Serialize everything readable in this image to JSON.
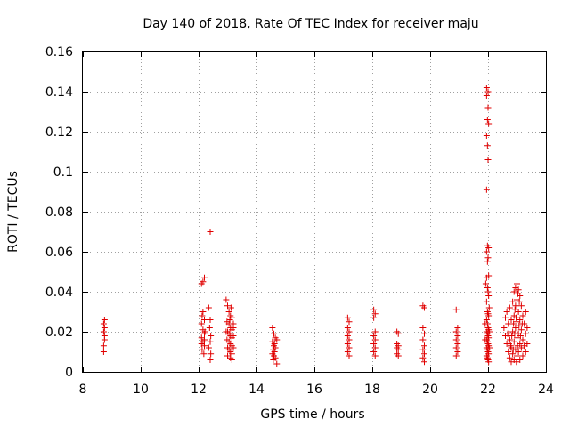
{
  "chart_data": {
    "type": "scatter",
    "title": "Day 140 of 2018, Rate Of TEC Index for receiver maju",
    "xlabel": "GPS time / hours",
    "ylabel": "ROTI / TECUs",
    "xlim": [
      8,
      24
    ],
    "ylim": [
      0,
      0.16
    ],
    "grid": true,
    "marker": "plus",
    "color": "#e00000",
    "x_ticks": [
      8,
      10,
      12,
      14,
      16,
      18,
      20,
      22,
      24
    ],
    "x_tick_labels": [
      "8",
      "10",
      "12",
      "14",
      "16",
      "18",
      "20",
      "22",
      "24"
    ],
    "y_ticks": [
      0,
      0.02,
      0.04,
      0.06,
      0.08,
      0.1,
      0.12,
      0.14,
      0.16
    ],
    "y_tick_labels": [
      "0",
      "0.02",
      "0.04",
      "0.06",
      "0.08",
      "0.1",
      "0.12",
      "0.14",
      "0.16"
    ],
    "series": [
      {
        "name": "ROTI",
        "points": [
          [
            8.72,
            0.01
          ],
          [
            8.72,
            0.013
          ],
          [
            8.75,
            0.016
          ],
          [
            8.75,
            0.018
          ],
          [
            8.72,
            0.02
          ],
          [
            8.75,
            0.022
          ],
          [
            8.72,
            0.024
          ],
          [
            8.75,
            0.026
          ],
          [
            12.1,
            0.044
          ],
          [
            12.15,
            0.045
          ],
          [
            12.2,
            0.047
          ],
          [
            12.15,
            0.03
          ],
          [
            12.12,
            0.028
          ],
          [
            12.2,
            0.026
          ],
          [
            12.1,
            0.024
          ],
          [
            12.15,
            0.021
          ],
          [
            12.2,
            0.019
          ],
          [
            12.1,
            0.017
          ],
          [
            12.15,
            0.015
          ],
          [
            12.2,
            0.013
          ],
          [
            12.12,
            0.011
          ],
          [
            12.18,
            0.009
          ],
          [
            12.22,
            0.02
          ],
          [
            12.1,
            0.014
          ],
          [
            12.2,
            0.016
          ],
          [
            12.4,
            0.07
          ],
          [
            12.35,
            0.032
          ],
          [
            12.4,
            0.026
          ],
          [
            12.38,
            0.022
          ],
          [
            12.42,
            0.018
          ],
          [
            12.4,
            0.015
          ],
          [
            12.35,
            0.012
          ],
          [
            12.42,
            0.009
          ],
          [
            12.4,
            0.006
          ],
          [
            12.95,
            0.036
          ],
          [
            13.0,
            0.033
          ],
          [
            13.05,
            0.03
          ],
          [
            13.1,
            0.028
          ],
          [
            13.15,
            0.027
          ],
          [
            12.98,
            0.025
          ],
          [
            13.05,
            0.024
          ],
          [
            13.1,
            0.022
          ],
          [
            13.15,
            0.021
          ],
          [
            13.0,
            0.02
          ],
          [
            13.05,
            0.019
          ],
          [
            13.1,
            0.018
          ],
          [
            13.15,
            0.017
          ],
          [
            12.98,
            0.016
          ],
          [
            13.05,
            0.015
          ],
          [
            13.1,
            0.014
          ],
          [
            13.15,
            0.013
          ],
          [
            13.0,
            0.012
          ],
          [
            13.05,
            0.011
          ],
          [
            13.1,
            0.01
          ],
          [
            13.15,
            0.009
          ],
          [
            13.0,
            0.008
          ],
          [
            13.1,
            0.007
          ],
          [
            13.15,
            0.006
          ],
          [
            13.2,
            0.024
          ],
          [
            13.2,
            0.018
          ],
          [
            13.2,
            0.012
          ],
          [
            13.2,
            0.022
          ],
          [
            12.95,
            0.02
          ],
          [
            13.12,
            0.032
          ],
          [
            13.08,
            0.026
          ],
          [
            14.55,
            0.022
          ],
          [
            14.6,
            0.019
          ],
          [
            14.65,
            0.017
          ],
          [
            14.55,
            0.015
          ],
          [
            14.6,
            0.013
          ],
          [
            14.65,
            0.012
          ],
          [
            14.58,
            0.011
          ],
          [
            14.62,
            0.01
          ],
          [
            14.55,
            0.009
          ],
          [
            14.6,
            0.008
          ],
          [
            14.65,
            0.007
          ],
          [
            14.58,
            0.006
          ],
          [
            14.7,
            0.004
          ],
          [
            14.7,
            0.016
          ],
          [
            14.62,
            0.014
          ],
          [
            17.15,
            0.027
          ],
          [
            17.2,
            0.025
          ],
          [
            17.15,
            0.022
          ],
          [
            17.2,
            0.02
          ],
          [
            17.15,
            0.018
          ],
          [
            17.2,
            0.016
          ],
          [
            17.15,
            0.014
          ],
          [
            17.2,
            0.012
          ],
          [
            17.15,
            0.01
          ],
          [
            17.2,
            0.008
          ],
          [
            18.05,
            0.031
          ],
          [
            18.1,
            0.029
          ],
          [
            18.05,
            0.027
          ],
          [
            18.1,
            0.02
          ],
          [
            18.05,
            0.018
          ],
          [
            18.1,
            0.016
          ],
          [
            18.05,
            0.014
          ],
          [
            18.1,
            0.012
          ],
          [
            18.05,
            0.01
          ],
          [
            18.1,
            0.008
          ],
          [
            18.85,
            0.02
          ],
          [
            18.9,
            0.019
          ],
          [
            18.85,
            0.014
          ],
          [
            18.9,
            0.013
          ],
          [
            18.85,
            0.012
          ],
          [
            18.9,
            0.011
          ],
          [
            18.85,
            0.009
          ],
          [
            18.9,
            0.008
          ],
          [
            19.75,
            0.033
          ],
          [
            19.8,
            0.032
          ],
          [
            19.75,
            0.022
          ],
          [
            19.8,
            0.019
          ],
          [
            19.75,
            0.016
          ],
          [
            19.8,
            0.013
          ],
          [
            19.75,
            0.011
          ],
          [
            19.8,
            0.009
          ],
          [
            19.75,
            0.007
          ],
          [
            19.8,
            0.005
          ],
          [
            20.9,
            0.031
          ],
          [
            20.95,
            0.022
          ],
          [
            20.9,
            0.02
          ],
          [
            20.95,
            0.018
          ],
          [
            20.9,
            0.016
          ],
          [
            20.95,
            0.014
          ],
          [
            20.9,
            0.012
          ],
          [
            20.95,
            0.01
          ],
          [
            20.9,
            0.008
          ],
          [
            21.95,
            0.142
          ],
          [
            22.0,
            0.14
          ],
          [
            21.95,
            0.138
          ],
          [
            22.0,
            0.132
          ],
          [
            21.98,
            0.126
          ],
          [
            22.02,
            0.124
          ],
          [
            21.95,
            0.118
          ],
          [
            21.98,
            0.113
          ],
          [
            22.0,
            0.106
          ],
          [
            21.95,
            0.091
          ],
          [
            21.98,
            0.063
          ],
          [
            22.02,
            0.062
          ],
          [
            21.95,
            0.06
          ],
          [
            22.0,
            0.057
          ],
          [
            21.98,
            0.055
          ],
          [
            22.02,
            0.048
          ],
          [
            21.95,
            0.047
          ],
          [
            21.98,
            0.042
          ],
          [
            22.0,
            0.04
          ],
          [
            22.02,
            0.038
          ],
          [
            21.95,
            0.035
          ],
          [
            21.98,
            0.03
          ],
          [
            22.0,
            0.029
          ],
          [
            22.02,
            0.028
          ],
          [
            21.95,
            0.026
          ],
          [
            21.98,
            0.024
          ],
          [
            22.0,
            0.022
          ],
          [
            22.02,
            0.021
          ],
          [
            21.95,
            0.02
          ],
          [
            21.98,
            0.019
          ],
          [
            22.0,
            0.018
          ],
          [
            22.02,
            0.017
          ],
          [
            21.95,
            0.016
          ],
          [
            21.98,
            0.015
          ],
          [
            22.0,
            0.014
          ],
          [
            22.02,
            0.013
          ],
          [
            21.95,
            0.012
          ],
          [
            21.98,
            0.011
          ],
          [
            22.0,
            0.01
          ],
          [
            22.02,
            0.009
          ],
          [
            21.95,
            0.008
          ],
          [
            21.98,
            0.007
          ],
          [
            22.0,
            0.006
          ],
          [
            22.02,
            0.005
          ],
          [
            21.9,
            0.024
          ],
          [
            22.05,
            0.02
          ],
          [
            21.9,
            0.016
          ],
          [
            22.05,
            0.012
          ],
          [
            21.92,
            0.044
          ],
          [
            22.04,
            0.032
          ],
          [
            22.55,
            0.022
          ],
          [
            22.6,
            0.027
          ],
          [
            22.6,
            0.018
          ],
          [
            22.65,
            0.03
          ],
          [
            22.65,
            0.014
          ],
          [
            22.7,
            0.024
          ],
          [
            22.7,
            0.01
          ],
          [
            22.75,
            0.032
          ],
          [
            22.75,
            0.016
          ],
          [
            22.75,
            0.007
          ],
          [
            22.8,
            0.026
          ],
          [
            22.8,
            0.012
          ],
          [
            22.8,
            0.005
          ],
          [
            22.85,
            0.035
          ],
          [
            22.85,
            0.02
          ],
          [
            22.85,
            0.009
          ],
          [
            22.9,
            0.04
          ],
          [
            22.9,
            0.028
          ],
          [
            22.9,
            0.015
          ],
          [
            22.9,
            0.006
          ],
          [
            22.95,
            0.042
          ],
          [
            22.95,
            0.033
          ],
          [
            22.95,
            0.022
          ],
          [
            22.95,
            0.011
          ],
          [
            23.0,
            0.044
          ],
          [
            23.0,
            0.036
          ],
          [
            23.0,
            0.025
          ],
          [
            23.0,
            0.017
          ],
          [
            23.0,
            0.008
          ],
          [
            23.05,
            0.041
          ],
          [
            23.05,
            0.03
          ],
          [
            23.05,
            0.019
          ],
          [
            23.05,
            0.01
          ],
          [
            23.1,
            0.038
          ],
          [
            23.1,
            0.026
          ],
          [
            23.1,
            0.014
          ],
          [
            23.1,
            0.006
          ],
          [
            23.15,
            0.033
          ],
          [
            23.15,
            0.021
          ],
          [
            23.15,
            0.012
          ],
          [
            23.2,
            0.028
          ],
          [
            23.2,
            0.016
          ],
          [
            23.2,
            0.008
          ],
          [
            23.25,
            0.024
          ],
          [
            23.25,
            0.013
          ],
          [
            23.3,
            0.03
          ],
          [
            23.3,
            0.019
          ],
          [
            23.3,
            0.01
          ],
          [
            23.35,
            0.022
          ],
          [
            23.35,
            0.014
          ],
          [
            22.92,
            0.019
          ],
          [
            22.97,
            0.027
          ],
          [
            23.02,
            0.013
          ],
          [
            23.07,
            0.023
          ],
          [
            23.12,
            0.018
          ],
          [
            22.88,
            0.024
          ],
          [
            22.82,
            0.018
          ],
          [
            22.78,
            0.013
          ],
          [
            22.98,
            0.005
          ],
          [
            23.08,
            0.035
          ],
          [
            22.93,
            0.031
          ],
          [
            23.03,
            0.039
          ],
          [
            22.87,
            0.011
          ],
          [
            23.18,
            0.024
          ],
          [
            22.68,
            0.019
          ],
          [
            22.72,
            0.014
          ]
        ]
      }
    ]
  }
}
